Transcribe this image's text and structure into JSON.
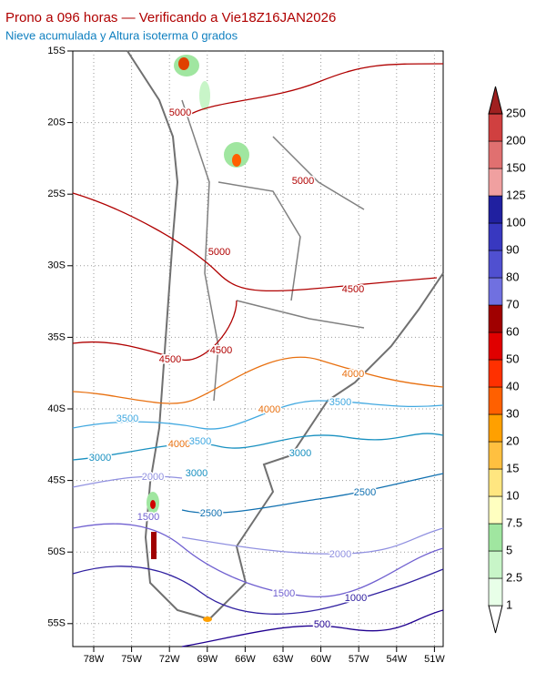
{
  "header": {
    "title": "Prono a 096 horas — Verificando a Vie18Z16JAN2026",
    "subtitle": "Nieve acumulada y Altura isoterma 0 grados"
  },
  "map": {
    "lat_labels": [
      "15S",
      "20S",
      "25S",
      "30S",
      "35S",
      "40S",
      "45S",
      "50S",
      "55S"
    ],
    "lon_labels": [
      "78W",
      "75W",
      "72W",
      "69W",
      "66W",
      "63W",
      "60W",
      "57W",
      "54W",
      "51W"
    ],
    "contour_labels": [
      "5000",
      "5000",
      "5000",
      "4500",
      "4500",
      "4500",
      "4000",
      "4000",
      "4000",
      "3500",
      "3500",
      "3500",
      "3000",
      "3000",
      "3000",
      "2500",
      "2500",
      "2000",
      "2000",
      "1500",
      "1500",
      "1000",
      "500"
    ]
  },
  "colorbar": {
    "labels": [
      "1",
      "2.5",
      "5",
      "7.5",
      "10",
      "15",
      "20",
      "30",
      "40",
      "50",
      "60",
      "70",
      "80",
      "90",
      "100",
      "125",
      "150",
      "200",
      "250"
    ],
    "colors": [
      "#ffffff",
      "#e8ffe8",
      "#c8f5c8",
      "#a0e6a0",
      "#ffffc0",
      "#ffe680",
      "#ffc040",
      "#ffa000",
      "#ff6000",
      "#ff3000",
      "#e00000",
      "#a00000",
      "#7070e0",
      "#5050d0",
      "#3838c0",
      "#2020a0",
      "#f0a0a0",
      "#e07070",
      "#d04040",
      "#a02020"
    ]
  }
}
